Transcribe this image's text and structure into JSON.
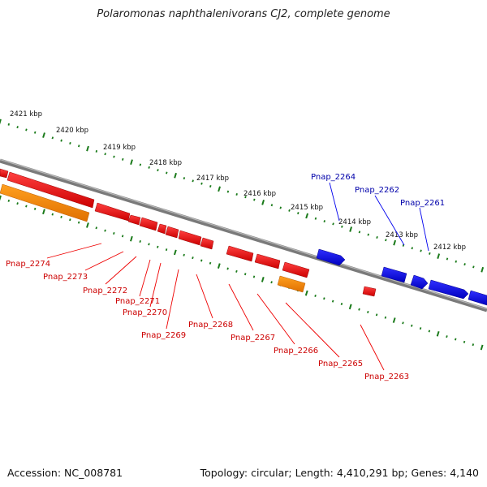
{
  "title": "Polaromonas naphthalenivorans CJ2, complete genome",
  "footer": {
    "accession": "Accession: NC_008781",
    "summary": "Topology: circular; Length: 4,410,291 bp; Genes: 4,140"
  },
  "colors": {
    "backbone": "#808080",
    "tick": "#1a7a1a",
    "gene_red": "#ee0000",
    "gene_orange": "#ff8c00",
    "gene_blue": "#0000ee",
    "label_red": "#cc0000",
    "label_blue": "#0000aa"
  },
  "kbp_labels": [
    "2421 kbp",
    "2420 kbp",
    "2419 kbp",
    "2418 kbp",
    "2417 kbp",
    "2416 kbp",
    "2415 kbp",
    "2414 kbp",
    "2413 kbp",
    "2412 kbp"
  ],
  "gene_labels_red": [
    "Pnap_2274",
    "Pnap_2273",
    "Pnap_2272",
    "Pnap_2271",
    "Pnap_2270",
    "Pnap_2269",
    "Pnap_2268",
    "Pnap_2267",
    "Pnap_2266",
    "Pnap_2265",
    "Pnap_2263"
  ],
  "gene_labels_blue": [
    "Pnap_2264",
    "Pnap_2262",
    "Pnap_2261"
  ]
}
